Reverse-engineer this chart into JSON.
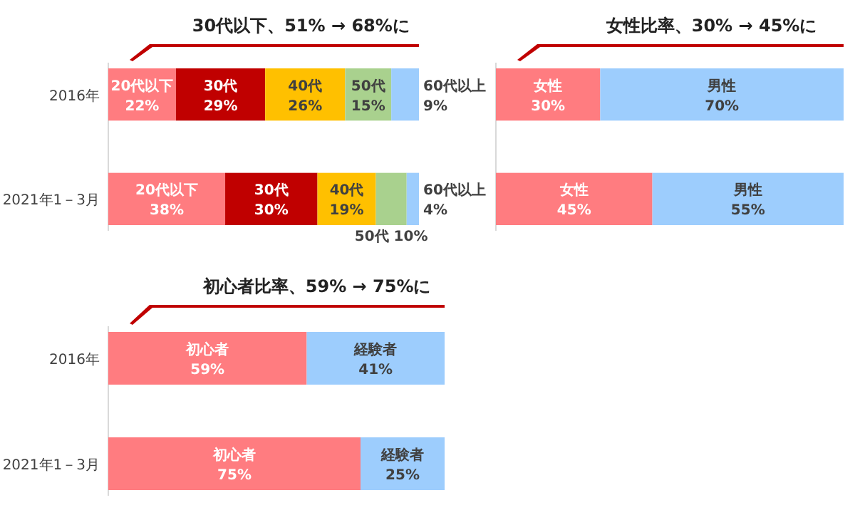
{
  "chart_data": [
    {
      "type": "bar",
      "orientation": "horizontal",
      "stacked": true,
      "title": "30代以下、51% → 68%に",
      "categories": [
        "2016年",
        "2021年1－3月"
      ],
      "tick_labels": "y",
      "series": [
        {
          "name": "20代以下",
          "color": "#ff7c80",
          "values": [
            22,
            38
          ],
          "value_labels": [
            "22%",
            "38%"
          ]
        },
        {
          "name": "30代",
          "color": "#c00000",
          "values": [
            29,
            30
          ],
          "value_labels": [
            "29%",
            "30%"
          ]
        },
        {
          "name": "40代",
          "color": "#ffc000",
          "values": [
            26,
            19
          ],
          "value_labels": [
            "26%",
            "19%"
          ]
        },
        {
          "name": "50代",
          "color": "#a9d18e",
          "values": [
            15,
            10
          ],
          "value_labels": [
            "15%",
            "10%"
          ]
        },
        {
          "name": "60代以上",
          "color": "#9dcdfd",
          "values": [
            9,
            4
          ],
          "value_labels": [
            "9%",
            "4%"
          ]
        }
      ]
    },
    {
      "type": "bar",
      "orientation": "horizontal",
      "stacked": true,
      "title": "女性比率、30% → 45%に",
      "categories": [
        null,
        null
      ],
      "tick_labels": false,
      "series": [
        {
          "name": "女性",
          "color": "#ff7c80",
          "values": [
            30,
            45
          ],
          "value_labels": [
            "30%",
            "45%"
          ]
        },
        {
          "name": "男性",
          "color": "#9dcdfd",
          "values": [
            70,
            55
          ],
          "value_labels": [
            "70%",
            "55%"
          ]
        }
      ]
    },
    {
      "type": "bar",
      "orientation": "horizontal",
      "stacked": true,
      "title": "初心者比率、59% → 75%に",
      "categories": [
        "2016年",
        "2021年1－3月"
      ],
      "tick_labels": "y",
      "series": [
        {
          "name": "初心者",
          "color": "#ff7c80",
          "values": [
            59,
            75
          ],
          "value_labels": [
            "59%",
            "75%"
          ]
        },
        {
          "name": "経験者",
          "color": "#9dcdfd",
          "values": [
            41,
            25
          ],
          "value_labels": [
            "41%",
            "25%"
          ]
        }
      ]
    }
  ]
}
